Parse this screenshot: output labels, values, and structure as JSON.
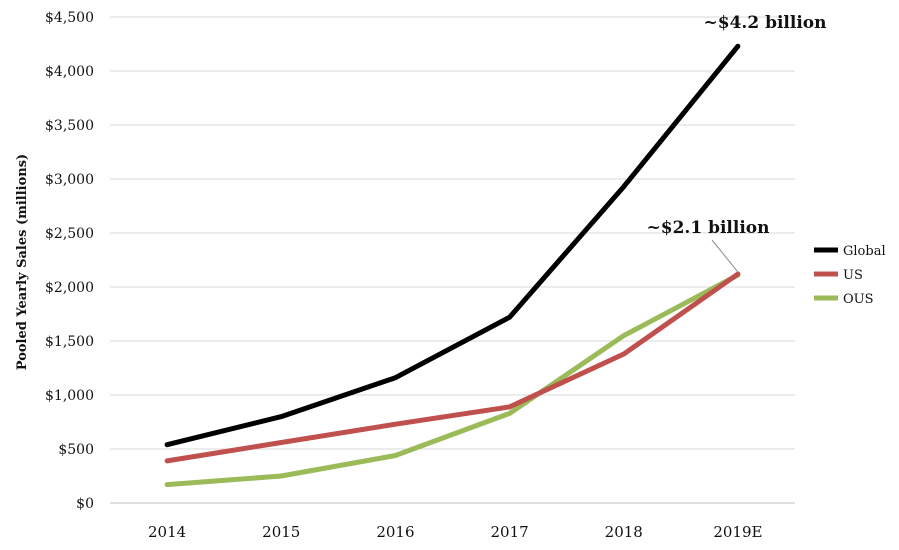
{
  "chart_data": {
    "type": "line",
    "title": "",
    "xlabel": "",
    "ylabel": "Pooled Yearly Sales (millions)",
    "categories": [
      "2014",
      "2015",
      "2016",
      "2017",
      "2018",
      "2019E"
    ],
    "ylim": [
      0,
      4500
    ],
    "yticks": [
      0,
      500,
      1000,
      1500,
      2000,
      2500,
      3000,
      3500,
      4000,
      4500
    ],
    "ytick_labels": [
      "$0",
      "$500",
      "$1,000",
      "$1,500",
      "$2,000",
      "$2,500",
      "$3,000",
      "$3,500",
      "$4,000",
      "$4,500"
    ],
    "grid": "horizontal",
    "legend_position": "right",
    "series": [
      {
        "name": "Global",
        "color": "#000000",
        "values": [
          540,
          800,
          1160,
          1720,
          2930,
          4230
        ]
      },
      {
        "name": "US",
        "color": "#c0504d",
        "values": [
          390,
          560,
          730,
          890,
          1380,
          2120
        ]
      },
      {
        "name": "OUS",
        "color": "#9bbb59",
        "values": [
          170,
          250,
          440,
          830,
          1550,
          2110
        ]
      }
    ],
    "annotations": [
      {
        "text": "~$4.2 billion",
        "series": "Global",
        "category": "2019E"
      },
      {
        "text": "~$2.1 billion",
        "series": "US",
        "category": "2019E"
      }
    ]
  }
}
